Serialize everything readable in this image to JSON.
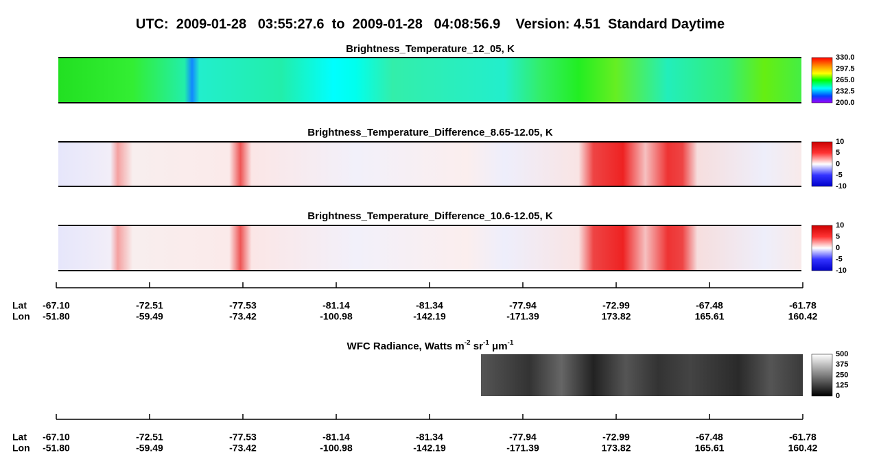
{
  "title": "UTC:  2009-01-28   03:55:27.6  to  2009-01-28   04:08:56.9    Version: 4.51  Standard Daytime",
  "panels": [
    {
      "title": "Brightness_Temperature_12_05, K",
      "colorbar": [
        "330.0",
        "297.5",
        "265.0",
        "232.5",
        "200.0"
      ]
    },
    {
      "title": "Brightness_Temperature_Difference_8.65-12.05, K",
      "colorbar": [
        "10",
        "5",
        "0",
        "-5",
        "-10"
      ]
    },
    {
      "title": "Brightness_Temperature_Difference_10.6-12.05, K",
      "colorbar": [
        "10",
        "5",
        "0",
        "-5",
        "-10"
      ]
    },
    {
      "title_parts": [
        "WFC Radiance, Watts m",
        "-2",
        " sr",
        "-1",
        " μm",
        "-1"
      ],
      "colorbar": [
        "500",
        "375",
        "250",
        "125",
        "0"
      ]
    }
  ],
  "axes": [
    {
      "lat_label": "Lat",
      "lon_label": "Lon",
      "lat": [
        "-67.10",
        "-72.51",
        "-77.53",
        "-81.14",
        "-81.34",
        "-77.94",
        "-72.99",
        "-67.48",
        "-61.78"
      ],
      "lon": [
        "-51.80",
        "-59.49",
        "-73.42",
        "-100.98",
        "-142.19",
        "-171.39",
        "173.82",
        "165.61",
        "160.42"
      ]
    },
    {
      "lat_label": "Lat",
      "lon_label": "Lon",
      "lat": [
        "-67.10",
        "-72.51",
        "-77.53",
        "-81.14",
        "-81.34",
        "-77.94",
        "-72.99",
        "-67.48",
        "-61.78"
      ],
      "lon": [
        "-51.80",
        "-59.49",
        "-73.42",
        "-100.98",
        "-142.19",
        "-171.39",
        "173.82",
        "165.61",
        "160.42"
      ]
    }
  ]
}
